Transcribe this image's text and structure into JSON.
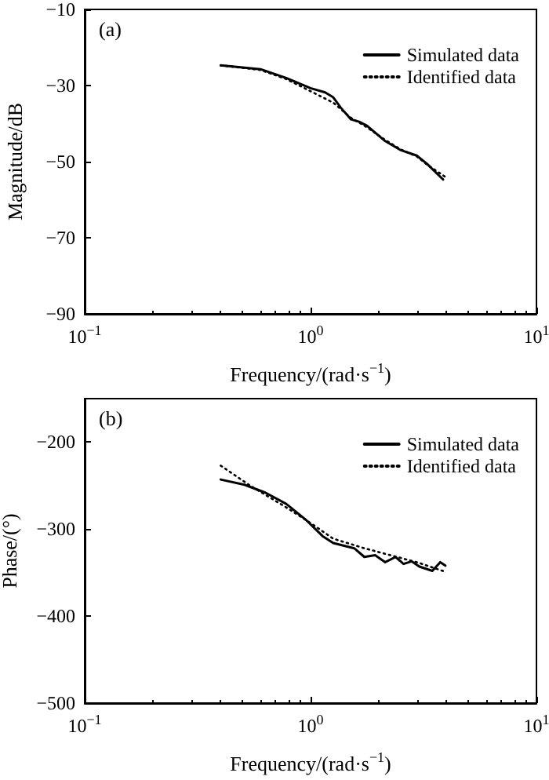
{
  "chart_data": [
    {
      "type": "line",
      "xlabel": "Frequency/(rad·s$^{−1}$)",
      "ylabel": "Magnitude/dB",
      "annotations": [
        "(a)"
      ],
      "xlim": [
        0.1,
        10
      ],
      "xticks": [
        {
          "value": 0.1,
          "label": "10$^{−1}$"
        },
        {
          "value": 1,
          "label": "10$^{0}$"
        },
        {
          "value": 10,
          "label": "10$^{1}$"
        }
      ],
      "ylim": [
        -90,
        -10
      ],
      "yticks": [
        -90,
        -70,
        -50,
        -30,
        -10
      ],
      "log": "x",
      "grid": false,
      "legend": "top right",
      "marker": "none",
      "series": [
        {
          "name": "Simulated data",
          "color": "#000000",
          "line_style": "solid",
          "x": [
            0.4,
            0.6,
            0.78,
            1.0,
            1.16,
            1.26,
            1.36,
            1.51,
            1.64,
            1.78,
            2.14,
            2.51,
            2.95,
            3.28,
            3.86
          ],
          "values": [
            -24.7,
            -25.7,
            -28.0,
            -30.7,
            -31.8,
            -33.1,
            -35.8,
            -38.9,
            -39.5,
            -40.6,
            -44.6,
            -47.0,
            -48.4,
            -50.6,
            -54.7
          ]
        },
        {
          "name": "Identified data",
          "color": "#000000",
          "line_style": "dotted",
          "x": [
            0.4,
            0.6,
            0.78,
            1.0,
            1.26,
            1.51,
            1.78,
            2.14,
            2.51,
            2.95,
            3.28,
            3.95
          ],
          "values": [
            -24.7,
            -25.9,
            -28.3,
            -31.5,
            -34.5,
            -38.5,
            -41.0,
            -44.3,
            -46.8,
            -48.6,
            -50.8,
            -54.0
          ]
        }
      ]
    },
    {
      "type": "line",
      "xlabel": "Frequency/(rad·s$^{−1}$)",
      "ylabel": "Phase/(°)",
      "annotations": [
        "(b)"
      ],
      "xlim": [
        0.1,
        10
      ],
      "xticks": [
        {
          "value": 0.1,
          "label": "10$^{−1}$"
        },
        {
          "value": 1,
          "label": "10$^{0}$"
        },
        {
          "value": 10,
          "label": "10$^{1}$"
        }
      ],
      "ylim": [
        -500,
        -150
      ],
      "yticks": [
        -500,
        -400,
        -300,
        -200
      ],
      "log": "x",
      "grid": false,
      "legend": "top right",
      "marker": "none",
      "series": [
        {
          "name": "Simulated data",
          "color": "#000000",
          "line_style": "solid",
          "x": [
            0.4,
            0.51,
            0.63,
            0.78,
            0.96,
            1.13,
            1.26,
            1.56,
            1.73,
            1.93,
            2.14,
            2.38,
            2.58,
            2.8,
            3.03,
            3.46,
            3.75,
            3.95
          ],
          "values": [
            -243,
            -249,
            -258,
            -271,
            -290,
            -308,
            -316,
            -322,
            -332,
            -330,
            -338,
            -332,
            -340,
            -337,
            -343,
            -348,
            -338,
            -342
          ]
        },
        {
          "name": "Identified data",
          "color": "#000000",
          "line_style": "dotted",
          "x": [
            0.4,
            0.54,
            0.78,
            1.0,
            1.26,
            1.73,
            2.95,
            3.95
          ],
          "values": [
            -227,
            -250,
            -275,
            -293,
            -311,
            -322,
            -338,
            -349
          ]
        }
      ]
    }
  ]
}
